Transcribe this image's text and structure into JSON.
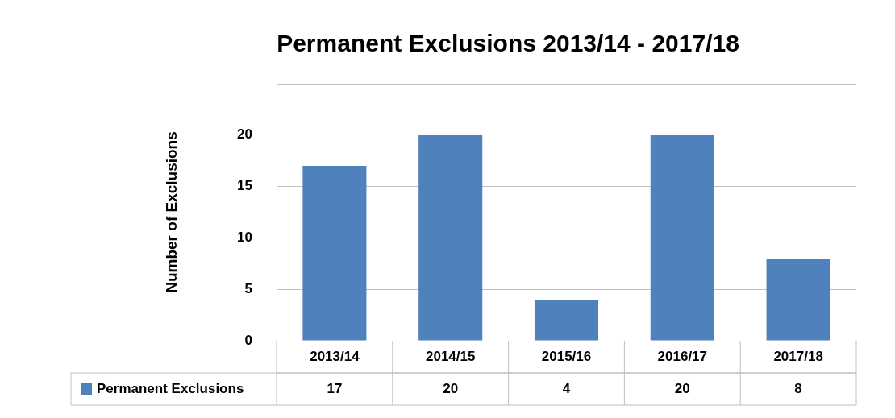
{
  "chart_data": {
    "type": "bar",
    "title": "Permanent Exclusions 2013/14 - 2017/18",
    "ylabel": "Number of Exclusions",
    "categories": [
      "2013/14",
      "2014/15",
      "2015/16",
      "2016/17",
      "2017/18"
    ],
    "series": [
      {
        "name": "Permanent Exclusions",
        "color": "#4f81bd",
        "values": [
          17,
          20,
          4,
          20,
          8
        ]
      }
    ],
    "ylim": [
      0,
      25
    ],
    "yticks": [
      0,
      5,
      10,
      15,
      20,
      {
        "value": 25,
        "label": null
      }
    ],
    "grid": "y",
    "legend": "bottom",
    "data_labels": true
  }
}
